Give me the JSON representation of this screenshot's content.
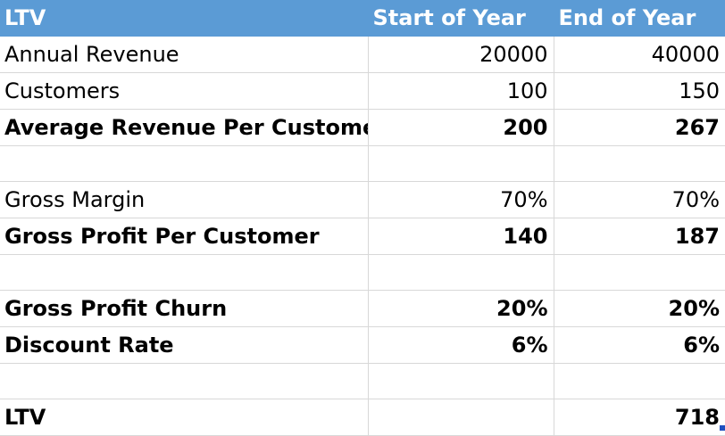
{
  "header": {
    "col1": "LTV",
    "col2": "Start of Year",
    "col3": "End of Year"
  },
  "rows": [
    {
      "label": "Annual Revenue",
      "start": "20000",
      "end": "40000",
      "bold": false
    },
    {
      "label": "Customers",
      "start": "100",
      "end": "150",
      "bold": false
    },
    {
      "label": "Average Revenue Per Customer",
      "start": "200",
      "end": "267",
      "bold": true
    },
    {
      "label": "",
      "start": "",
      "end": "",
      "bold": false
    },
    {
      "label": "Gross Margin",
      "start": "70%",
      "end": "70%",
      "bold": false
    },
    {
      "label": "Gross Profit Per Customer",
      "start": "140",
      "end": "187",
      "bold": true
    },
    {
      "label": "",
      "start": "",
      "end": "",
      "bold": false
    },
    {
      "label": "Gross Profit Churn",
      "start": "20%",
      "end": "20%",
      "bold": true
    },
    {
      "label": "Discount Rate",
      "start": "6%",
      "end": "6%",
      "bold": true
    },
    {
      "label": "",
      "start": "",
      "end": "",
      "bold": false
    },
    {
      "label": "LTV",
      "start": "",
      "end": "718",
      "bold": true
    }
  ],
  "colors": {
    "header_bg": "#5b9bd5",
    "header_text": "#ffffff",
    "gridline": "#d8d8d8",
    "selection_handle": "#1f4fbf"
  }
}
